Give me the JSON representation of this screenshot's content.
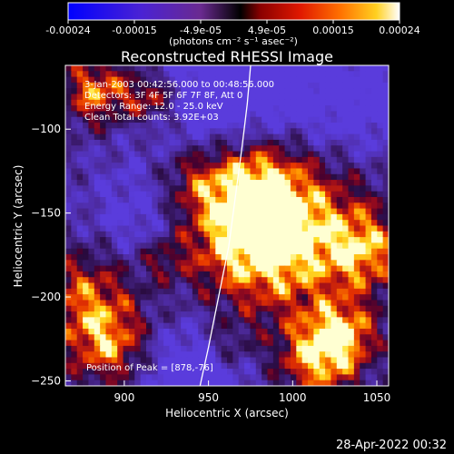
{
  "chart_data": {
    "type": "heatmap",
    "title": "Reconstructed RHESSI Image",
    "xlabel": "Heliocentric X (arcsec)",
    "ylabel": "Heliocentric Y (arcsec)",
    "xlim": [
      865,
      1057
    ],
    "ylim": [
      -253,
      -62
    ],
    "xticks": [
      900,
      950,
      1000,
      1050
    ],
    "yticks": [
      -100,
      -150,
      -200,
      -250
    ],
    "colorbar": {
      "range": [
        -0.00024,
        0.00024
      ],
      "ticks": [
        "-0.00024",
        "-0.00015",
        "-4.9e-05",
        "4.9e-05",
        "0.00015",
        "0.00024"
      ],
      "unit_label": "(photons cm⁻² s⁻¹ asec⁻²)",
      "colormap": "purple-blue-red-orange-yellow-white"
    },
    "annotations": {
      "time_range": "3-Jan-2003 00:42:56.000 to 00:48:56.000",
      "detectors": "Detectors: 3F 4F 5F 6F 7F 8F, Att 0",
      "energy": "Energy Range: 12.0 - 25.0 keV",
      "clean": "Clean    Total counts: 3.92E+03",
      "peak": "Position of Peak = [878,-76]"
    },
    "limb_curve": [
      [
        945,
        -253
      ],
      [
        950,
        -230
      ],
      [
        956,
        -200
      ],
      [
        962,
        -170
      ],
      [
        966,
        -140
      ],
      [
        970,
        -110
      ],
      [
        973,
        -85
      ],
      [
        975,
        -62
      ]
    ],
    "grid": false
  },
  "footer_timestamp": "28-Apr-2022 00:32"
}
